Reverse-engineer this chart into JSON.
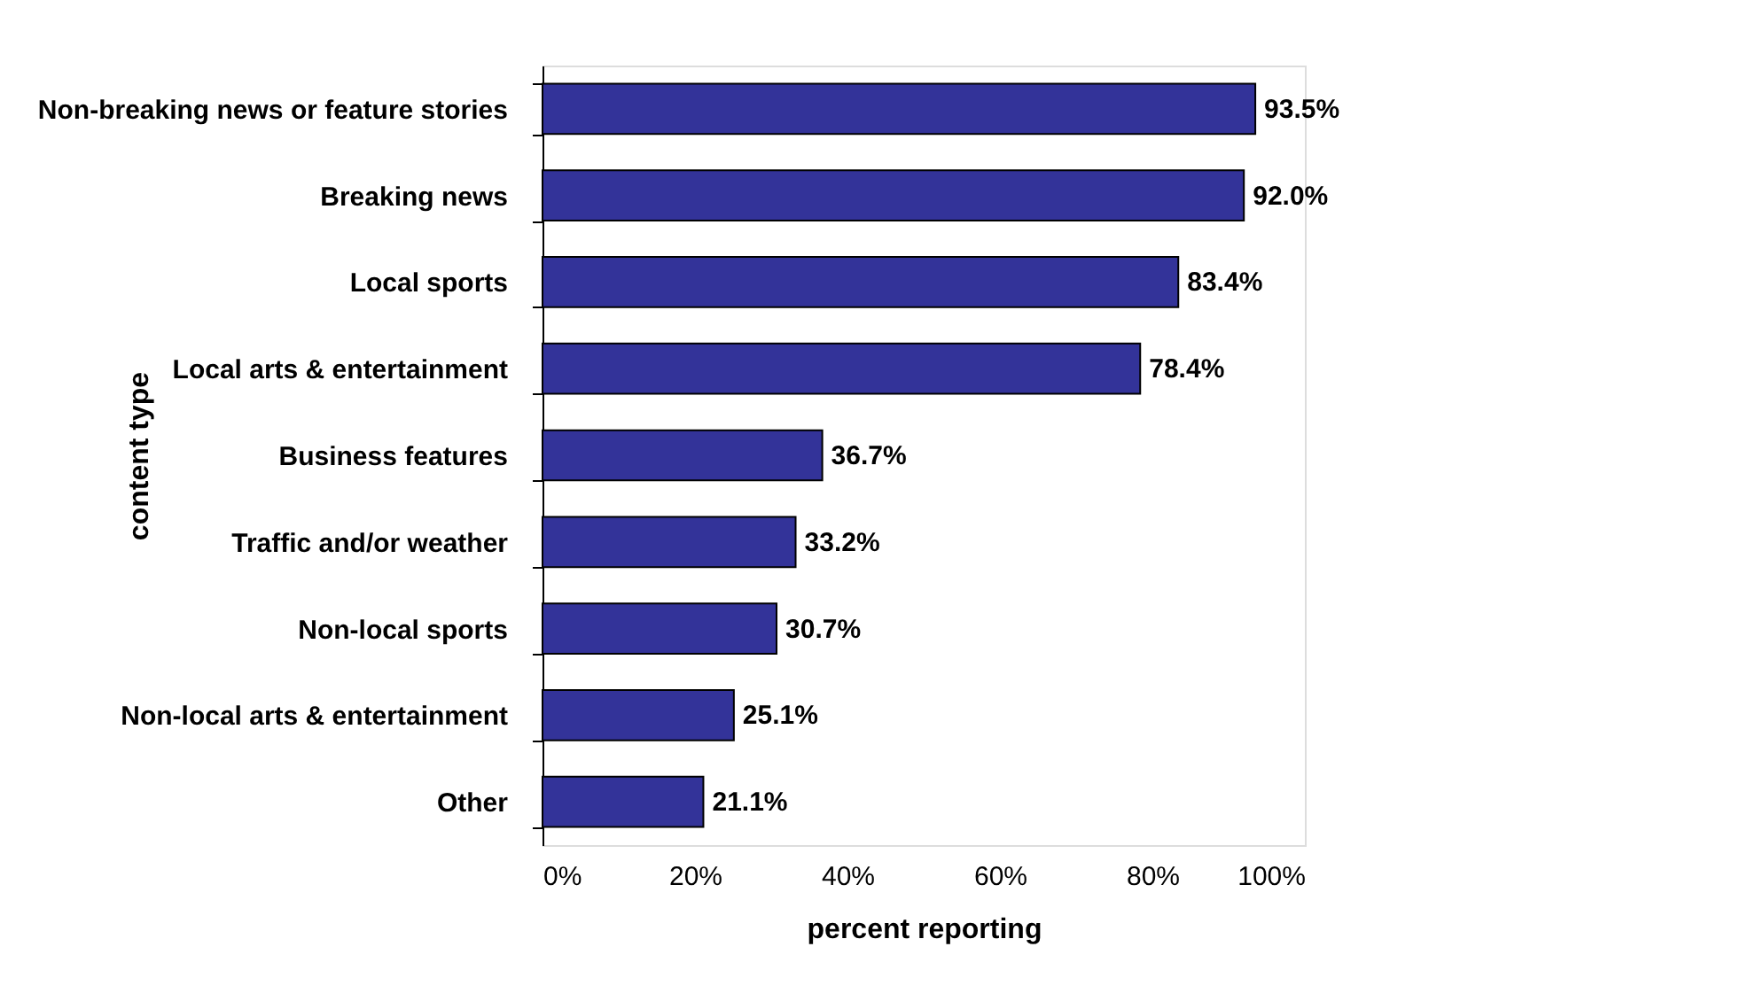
{
  "chart_data": {
    "type": "bar",
    "orientation": "horizontal",
    "xlabel": "percent reporting",
    "ylabel": "content type",
    "categories": [
      "Non-breaking news or feature stories",
      "Breaking news",
      "Local sports",
      "Local arts & entertainment",
      "Business features",
      "Traffic and/or weather",
      "Non-local sports",
      "Non-local arts & entertainment",
      "Other"
    ],
    "values": [
      93.5,
      92.0,
      83.4,
      78.4,
      36.7,
      33.2,
      30.7,
      25.1,
      21.1
    ],
    "value_labels": [
      "93.5%",
      "92.0%",
      "83.4%",
      "78.4%",
      "36.7%",
      "33.2%",
      "30.7%",
      "25.1%",
      "21.1%"
    ],
    "color": "#333399",
    "xlim": [
      0,
      100
    ],
    "xticks": [
      {
        "value": 0,
        "label": "0%"
      },
      {
        "value": 20,
        "label": "20%"
      },
      {
        "value": 40,
        "label": "40%"
      },
      {
        "value": 60,
        "label": "60%"
      },
      {
        "value": 80,
        "label": "80%"
      },
      {
        "value": 100,
        "label": "100%"
      }
    ],
    "grid": false
  }
}
